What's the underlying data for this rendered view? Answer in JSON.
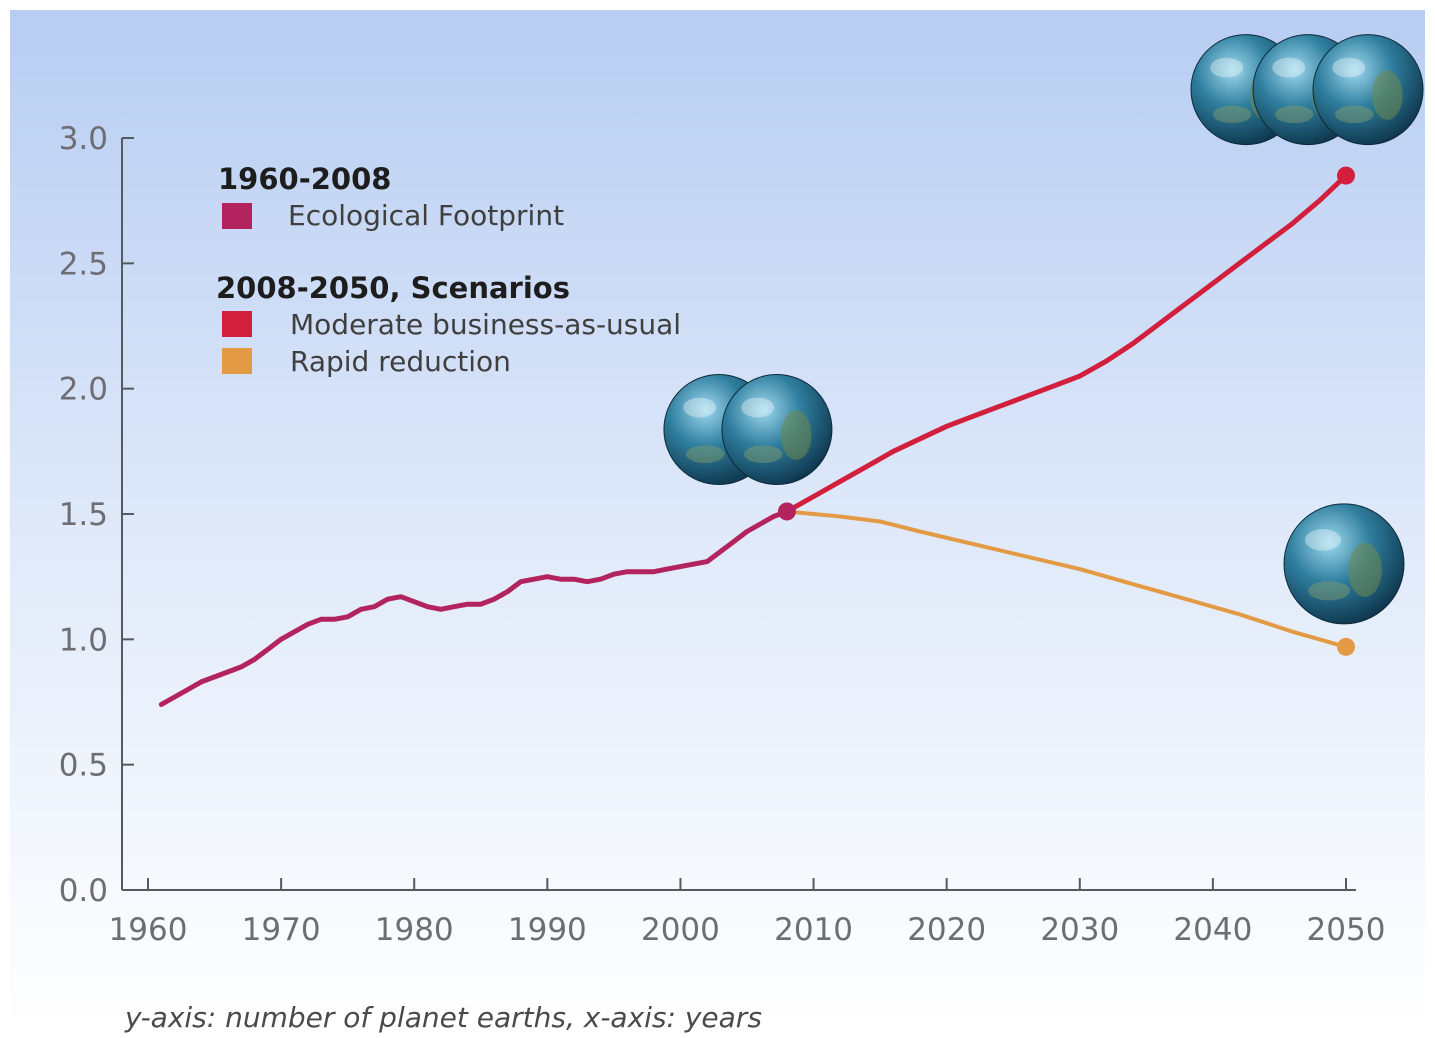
{
  "chart_data": {
    "type": "line",
    "xlim": [
      1960,
      2050
    ],
    "ylim": [
      0,
      3.0
    ],
    "x_ticks": [
      1960,
      1970,
      1980,
      1990,
      2000,
      2010,
      2020,
      2030,
      2040,
      2050
    ],
    "y_ticks": [
      "0.0",
      "0.5",
      "1.0",
      "1.5",
      "2.0",
      "2.5",
      "3.0"
    ],
    "legend_position": "top-left",
    "legend": {
      "group1_heading": "1960-2008",
      "group2_heading": "2008-2050, Scenarios"
    },
    "caption": "y-axis: number of planet earths, x-axis: years",
    "series": [
      {
        "name": "Ecological Footprint",
        "color": "#b3245e",
        "x": [
          1961,
          1962,
          1963,
          1964,
          1965,
          1966,
          1967,
          1968,
          1969,
          1970,
          1971,
          1972,
          1973,
          1974,
          1975,
          1976,
          1977,
          1978,
          1979,
          1980,
          1981,
          1982,
          1983,
          1984,
          1985,
          1986,
          1987,
          1988,
          1989,
          1990,
          1991,
          1992,
          1993,
          1994,
          1995,
          1996,
          1997,
          1998,
          1999,
          2000,
          2001,
          2002,
          2003,
          2004,
          2005,
          2006,
          2007,
          2008
        ],
        "values": [
          0.74,
          0.77,
          0.8,
          0.83,
          0.85,
          0.87,
          0.89,
          0.92,
          0.96,
          1.0,
          1.03,
          1.06,
          1.08,
          1.08,
          1.09,
          1.12,
          1.13,
          1.16,
          1.17,
          1.15,
          1.13,
          1.12,
          1.13,
          1.14,
          1.14,
          1.16,
          1.19,
          1.23,
          1.24,
          1.25,
          1.24,
          1.24,
          1.23,
          1.24,
          1.26,
          1.27,
          1.27,
          1.27,
          1.28,
          1.29,
          1.3,
          1.31,
          1.35,
          1.39,
          1.43,
          1.46,
          1.49,
          1.51
        ]
      },
      {
        "name": "Moderate business-as-usual",
        "color": "#d11f3c",
        "x": [
          2008,
          2010,
          2012,
          2014,
          2016,
          2018,
          2020,
          2022,
          2024,
          2026,
          2028,
          2030,
          2032,
          2034,
          2036,
          2038,
          2040,
          2042,
          2044,
          2046,
          2048,
          2050
        ],
        "values": [
          1.51,
          1.57,
          1.63,
          1.69,
          1.75,
          1.8,
          1.85,
          1.89,
          1.93,
          1.97,
          2.01,
          2.05,
          2.11,
          2.18,
          2.26,
          2.34,
          2.42,
          2.5,
          2.58,
          2.66,
          2.75,
          2.85
        ]
      },
      {
        "name": "Rapid reduction",
        "color": "#e39a45",
        "x": [
          2008,
          2012,
          2015,
          2018,
          2022,
          2026,
          2030,
          2034,
          2038,
          2042,
          2046,
          2050
        ],
        "values": [
          1.51,
          1.49,
          1.47,
          1.43,
          1.38,
          1.33,
          1.28,
          1.22,
          1.16,
          1.1,
          1.03,
          0.97
        ]
      }
    ]
  }
}
